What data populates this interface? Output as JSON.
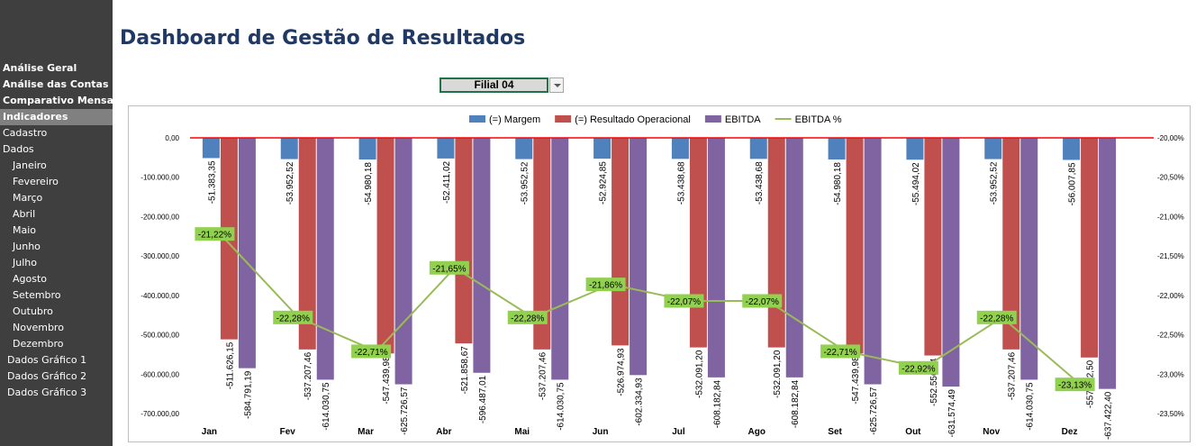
{
  "page": {
    "title": "Dashboard de Gestão de Resultados"
  },
  "sidebar": {
    "items": [
      {
        "label": "Análise Geral",
        "indent": 0,
        "bold": true,
        "active": false
      },
      {
        "label": "Análise das Contas",
        "indent": 0,
        "bold": true,
        "active": false
      },
      {
        "label": "Comparativo Mensal",
        "indent": 0,
        "bold": true,
        "active": false
      },
      {
        "label": "Indicadores",
        "indent": 0,
        "bold": true,
        "active": true
      },
      {
        "label": "Cadastro",
        "indent": 0,
        "bold": false,
        "active": false
      },
      {
        "label": "Dados",
        "indent": 0,
        "bold": false,
        "active": false
      },
      {
        "label": "Janeiro",
        "indent": 2,
        "bold": false,
        "active": false
      },
      {
        "label": "Fevereiro",
        "indent": 2,
        "bold": false,
        "active": false
      },
      {
        "label": "Março",
        "indent": 2,
        "bold": false,
        "active": false
      },
      {
        "label": "Abril",
        "indent": 2,
        "bold": false,
        "active": false
      },
      {
        "label": "Maio",
        "indent": 2,
        "bold": false,
        "active": false
      },
      {
        "label": "Junho",
        "indent": 2,
        "bold": false,
        "active": false
      },
      {
        "label": "Julho",
        "indent": 2,
        "bold": false,
        "active": false
      },
      {
        "label": "Agosto",
        "indent": 2,
        "bold": false,
        "active": false
      },
      {
        "label": "Setembro",
        "indent": 2,
        "bold": false,
        "active": false
      },
      {
        "label": "Outubro",
        "indent": 2,
        "bold": false,
        "active": false
      },
      {
        "label": "Novembro",
        "indent": 2,
        "bold": false,
        "active": false
      },
      {
        "label": "Dezembro",
        "indent": 2,
        "bold": false,
        "active": false
      },
      {
        "label": "Dados Gráfico 1",
        "indent": 1,
        "bold": false,
        "active": false
      },
      {
        "label": "Dados Gráfico 2",
        "indent": 1,
        "bold": false,
        "active": false
      },
      {
        "label": "Dados Gráfico 3",
        "indent": 1,
        "bold": false,
        "active": false
      }
    ]
  },
  "filter": {
    "selected": "Filial 04"
  },
  "chart_data": {
    "type": "bar",
    "categories": [
      "Jan",
      "Fev",
      "Mar",
      "Abr",
      "Mai",
      "Jun",
      "Jul",
      "Ago",
      "Set",
      "Out",
      "Nov",
      "Dez"
    ],
    "series": [
      {
        "name": "(=) Margem",
        "color": "#4f81bd",
        "values": [
          -51383.35,
          -53952.52,
          -54980.18,
          -52411.02,
          -53952.52,
          -52924.85,
          -53438.68,
          -53438.68,
          -54980.18,
          -55494.02,
          -53952.52,
          -56007.85
        ],
        "labels": [
          "-51.383,35",
          "-53.952,52",
          "-54.980,18",
          "-52.411,02",
          "-53.952,52",
          "-52.924,85",
          "-53.438,68",
          "-53.438,68",
          "-54.980,18",
          "-55.494,02",
          "-53.952,52",
          "-56.007,85"
        ]
      },
      {
        "name": "(=) Resultado Operacional",
        "color": "#c0504d",
        "values": [
          -511626.15,
          -537207.46,
          -547439.98,
          -521858.67,
          -537207.46,
          -526974.93,
          -532091.2,
          -532091.2,
          -547439.98,
          -552556.24,
          -537207.46,
          -557672.5
        ],
        "labels": [
          "-511.626,15",
          "-537.207,46",
          "-547.439,98",
          "-521.858,67",
          "-537.207,46",
          "-526.974,93",
          "-532.091,20",
          "-532.091,20",
          "-547.439,98",
          "-552.556,24",
          "-537.207,46",
          "-557.672,50"
        ]
      },
      {
        "name": "EBITDA",
        "color": "#8064a2",
        "values": [
          -584791.19,
          -614030.75,
          -625726.57,
          -596487.01,
          -614030.75,
          -602334.93,
          -608182.84,
          -608182.84,
          -625726.57,
          -631574.49,
          -614030.75,
          -637422.4
        ],
        "labels": [
          "-584.791,19",
          "-614.030,75",
          "-625.726,57",
          "-596.487,01",
          "-614.030,75",
          "-602.334,93",
          "-608.182,84",
          "-608.182,84",
          "-625.726,57",
          "-631.574,49",
          "-614.030,75",
          "-637.422,40"
        ]
      }
    ],
    "line_series": {
      "name": "EBITDA %",
      "color": "#9bbb59",
      "label_bg": "#92d050",
      "axis": "secondary",
      "values": [
        -21.22,
        -22.28,
        -22.71,
        -21.65,
        -22.28,
        -21.86,
        -22.07,
        -22.07,
        -22.71,
        -22.92,
        -22.28,
        -23.13
      ],
      "labels": [
        "-21,22%",
        "-22,28%",
        "-22,71%",
        "-21,65%",
        "-22,28%",
        "-21,86%",
        "-22,07%",
        "-22,07%",
        "-22,71%",
        "-22,92%",
        "-22,28%",
        "-23,13%"
      ]
    },
    "y_axis": {
      "range": [
        -700000,
        0
      ],
      "ticks": [
        0,
        -100000,
        -200000,
        -300000,
        -400000,
        -500000,
        -600000,
        -700000
      ],
      "tick_labels": [
        "0,00",
        "-100.000,00",
        "-200.000,00",
        "-300.000,00",
        "-400.000,00",
        "-500.000,00",
        "-600.000,00",
        "-700.000,00"
      ]
    },
    "y2_axis": {
      "range": [
        -23.5,
        -20.0
      ],
      "ticks": [
        -20.0,
        -20.5,
        -21.0,
        -21.5,
        -22.0,
        -22.5,
        -23.0,
        -23.5
      ],
      "tick_labels": [
        "-20,00%",
        "-20,50%",
        "-21,00%",
        "-21,50%",
        "-22,00%",
        "-22,50%",
        "-23,00%",
        "-23,50%"
      ]
    },
    "zero_line_color": "#ff0000",
    "grid": false,
    "legend_position": "top"
  }
}
